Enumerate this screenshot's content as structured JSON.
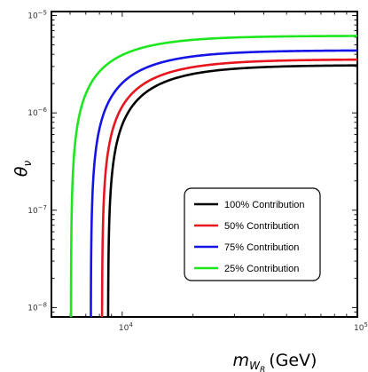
{
  "chart_data": {
    "type": "line",
    "title": "",
    "xlabel": {
      "main": "m",
      "sub": "W",
      "subsub": "R",
      "unit": "(GeV)"
    },
    "ylabel": {
      "main": "θ",
      "sub": "ν"
    },
    "xscale": "log",
    "yscale": "log",
    "xlim": [
      5000,
      100000
    ],
    "ylim": [
      8e-09,
      1.1e-05
    ],
    "x_tick_labels": [
      {
        "value": 10000,
        "base": "10",
        "exp": "4"
      },
      {
        "value": 100000,
        "base": "10",
        "exp": "5"
      }
    ],
    "y_tick_labels": [
      {
        "value": 1e-08,
        "base": "10",
        "exp": "−8"
      },
      {
        "value": 1e-07,
        "base": "10",
        "exp": "−7"
      },
      {
        "value": 1e-06,
        "base": "10",
        "exp": "−6"
      },
      {
        "value": 1e-05,
        "base": "10",
        "exp": "−5"
      }
    ],
    "legend_placement": "bottom-right",
    "series": [
      {
        "name": "100% Contribution",
        "color": "#000000",
        "x_threshold": 8700,
        "y_asymptote": 3.1e-06,
        "ymin": 8e-09
      },
      {
        "name": "50% Contribution",
        "color": "#e8141e",
        "x_threshold": 8200,
        "y_asymptote": 3.55e-06,
        "ymin": 8e-09
      },
      {
        "name": "75% Contribution",
        "color": "#1414e6",
        "x_threshold": 7350,
        "y_asymptote": 4.4e-06,
        "ymin": 8e-09
      },
      {
        "name": "25% Contribution",
        "color": "#1ee61e",
        "x_threshold": 6050,
        "y_asymptote": 6.2e-06,
        "ymin": 8e-09
      }
    ]
  }
}
